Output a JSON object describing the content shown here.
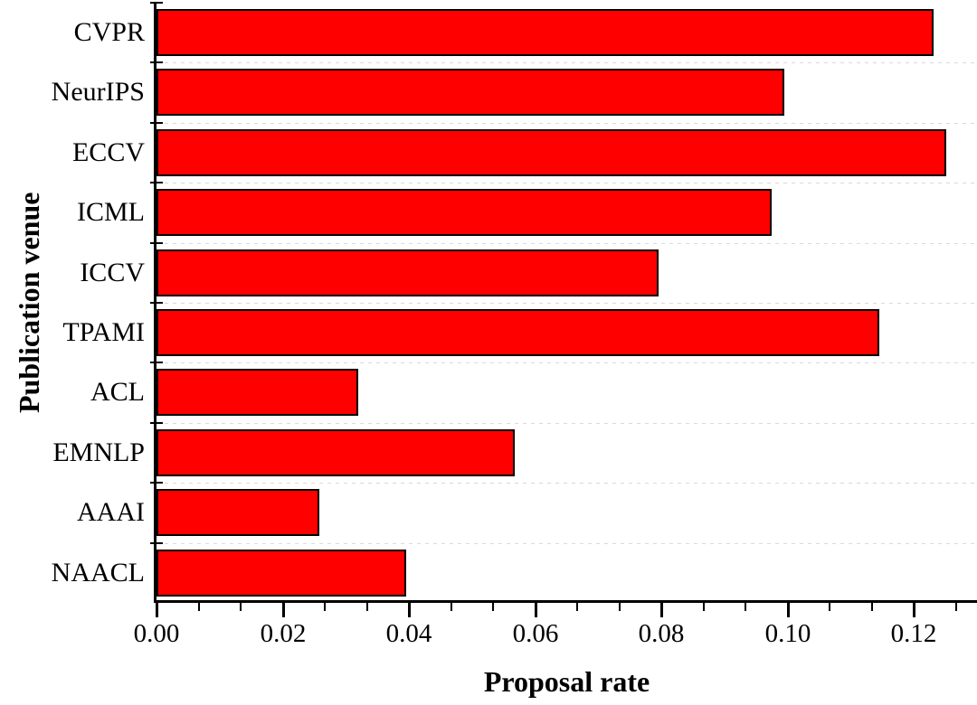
{
  "chart_data": {
    "type": "bar",
    "orientation": "horizontal",
    "title": "",
    "xlabel": "Proposal rate",
    "ylabel": "Publication venue",
    "categories": [
      "CVPR",
      "NeurIPS",
      "ECCV",
      "ICML",
      "ICCV",
      "TPAMI",
      "ACL",
      "EMNLP",
      "AAAI",
      "NAACL"
    ],
    "values": [
      0.1231,
      0.0994,
      0.1251,
      0.0974,
      0.0795,
      0.1145,
      0.032,
      0.0568,
      0.0258,
      0.0396
    ],
    "xlim": [
      0,
      0.13
    ],
    "x_major_tick_values": [
      0.0,
      0.02,
      0.04,
      0.06,
      0.08,
      0.1,
      0.12
    ],
    "x_tick_labels": [
      "0.00",
      "0.02",
      "0.04",
      "0.06",
      "0.08",
      "0.10",
      "0.12"
    ],
    "x_minor_ticks_per_interval": 2,
    "grid": "horizontal dashed lines at category boundaries",
    "legend": "none",
    "bar_color": "#ff0000",
    "bar_border_color": "#000000",
    "axis_color": "#000000",
    "grid_color": "#d9d9d9",
    "background_color": "#ffffff"
  }
}
